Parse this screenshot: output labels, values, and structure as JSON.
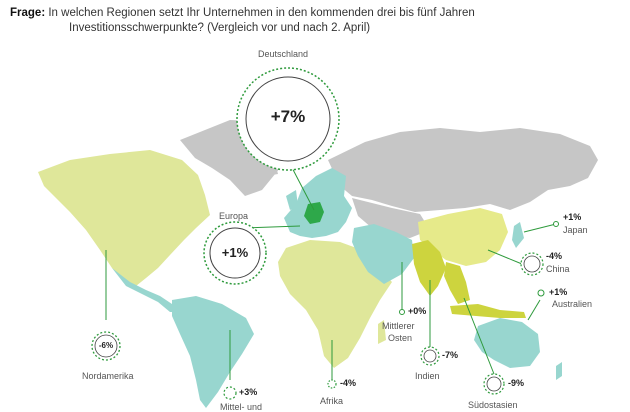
{
  "question": {
    "label": "Frage:",
    "line1": "In welchen Regionen setzt Ihr Unternehmen in den kommenden drei bis fünf Jahren",
    "line2": "Investitionsschwerpunkte? (Vergleich vor und nach 2. April)"
  },
  "regions": [
    {
      "key": "deutschland",
      "name": "Deutschland",
      "change": "+7%"
    },
    {
      "key": "europa",
      "name": "Europa",
      "change": "+1%"
    },
    {
      "key": "nordamerika",
      "name": "Nordamerika",
      "change": "-6%"
    },
    {
      "key": "mittelamerika",
      "name": "Mittel- und",
      "change": "+3%"
    },
    {
      "key": "afrika",
      "name": "Afrika",
      "change": "-4%"
    },
    {
      "key": "mittlerer_osten",
      "name": "Mittlerer\nOsten",
      "name_line1": "Mittlerer",
      "name_line2": "Osten",
      "change": "+0%"
    },
    {
      "key": "indien",
      "name": "Indien",
      "change": "-7%"
    },
    {
      "key": "suedostasien",
      "name": "Südostasien",
      "change": "-9%"
    },
    {
      "key": "china",
      "name": "China",
      "change": "-4%"
    },
    {
      "key": "japan",
      "name": "Japan",
      "change": "+1%"
    },
    {
      "key": "australien",
      "name": "Australien",
      "change": "+1%"
    }
  ],
  "colors": {
    "yellow_green": "#dfe79a",
    "teal": "#98d6cf",
    "grey": "#c6c6c6",
    "green_accent": "#2e9a3c",
    "germany": "#2ea84a",
    "asia_yellow": "#e6ea8a"
  }
}
